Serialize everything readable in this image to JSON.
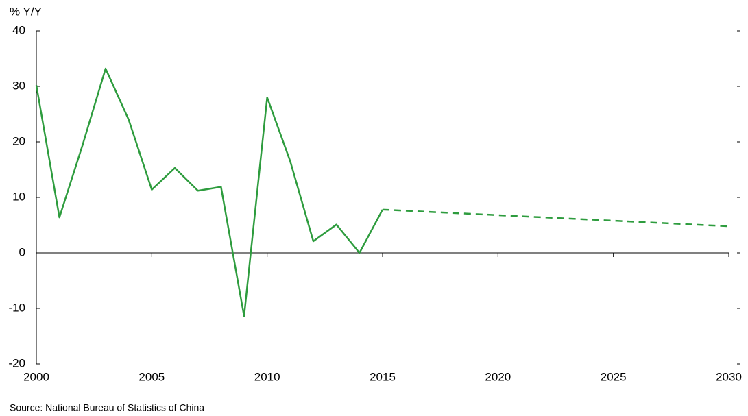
{
  "chart_data": {
    "type": "line",
    "ylabel": "% Y/Y",
    "source": "Source: National Bureau of Statistics of China",
    "x": [
      2000,
      2001,
      2002,
      2003,
      2004,
      2005,
      2006,
      2007,
      2008,
      2009,
      2010,
      2011,
      2012,
      2013,
      2014,
      2015,
      2016,
      2017,
      2018,
      2019,
      2020,
      2021,
      2022,
      2023,
      2024,
      2025,
      2026,
      2027,
      2028,
      2029,
      2030
    ],
    "series": [
      {
        "color": "#2e9c3e",
        "style": "solid",
        "values": [
          30.2,
          6.4,
          19.4,
          33.2,
          24,
          11.4,
          15.3,
          11.2,
          11.9,
          -11.4,
          28,
          16.5,
          2.1,
          5.1,
          0,
          7.8,
          null,
          null,
          null,
          null,
          null,
          null,
          null,
          null,
          null,
          null,
          null,
          null,
          null,
          null,
          null
        ]
      },
      {
        "color": "#2e9c3e",
        "style": "dashed",
        "values": [
          null,
          null,
          null,
          null,
          null,
          null,
          null,
          null,
          null,
          null,
          null,
          null,
          null,
          null,
          null,
          7.8,
          7.6,
          7.4,
          7.2,
          7,
          6.8,
          6.6,
          6.4,
          6.2,
          6,
          5.8,
          5.6,
          5.4,
          5.2,
          5,
          4.8
        ]
      }
    ],
    "xlim": [
      2000,
      2030
    ],
    "xticks": [
      2000,
      2005,
      2010,
      2015,
      2020,
      2025,
      2030
    ],
    "ylim": [
      -20,
      40
    ],
    "yticks": [
      -20,
      -10,
      0,
      10,
      20,
      30,
      40
    ],
    "grid": false
  }
}
